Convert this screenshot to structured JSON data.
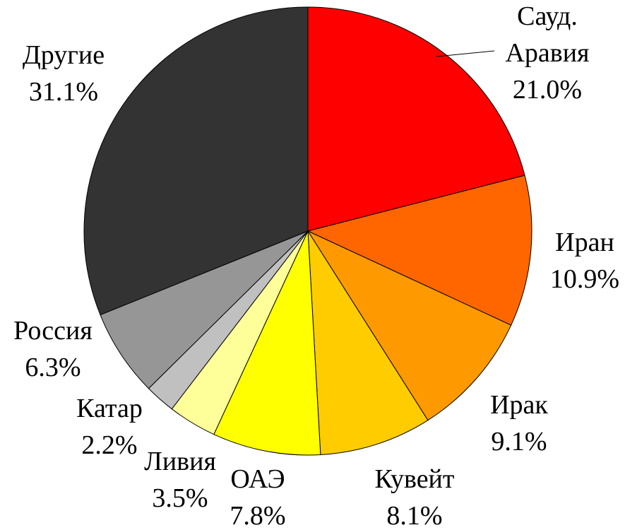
{
  "chart_data": {
    "type": "pie",
    "categories": [
      "Сауд. Аравия",
      "Иран",
      "Ирак",
      "Кувейт",
      "ОАЭ",
      "Ливия",
      "Катар",
      "Россия",
      "Другие"
    ],
    "values": [
      21.0,
      10.9,
      9.1,
      8.1,
      7.8,
      3.5,
      2.2,
      6.3,
      31.1
    ],
    "value_labels": [
      "21.0%",
      "10.9%",
      "9.1%",
      "8.1%",
      "7.8%",
      "3.5%",
      "2.2%",
      "6.3%",
      "31.1%"
    ],
    "colors": [
      "#ff0000",
      "#ff6600",
      "#ff9900",
      "#ffcc00",
      "#ffff00",
      "#ffff99",
      "#c0c0c0",
      "#969696",
      "#333333"
    ]
  }
}
